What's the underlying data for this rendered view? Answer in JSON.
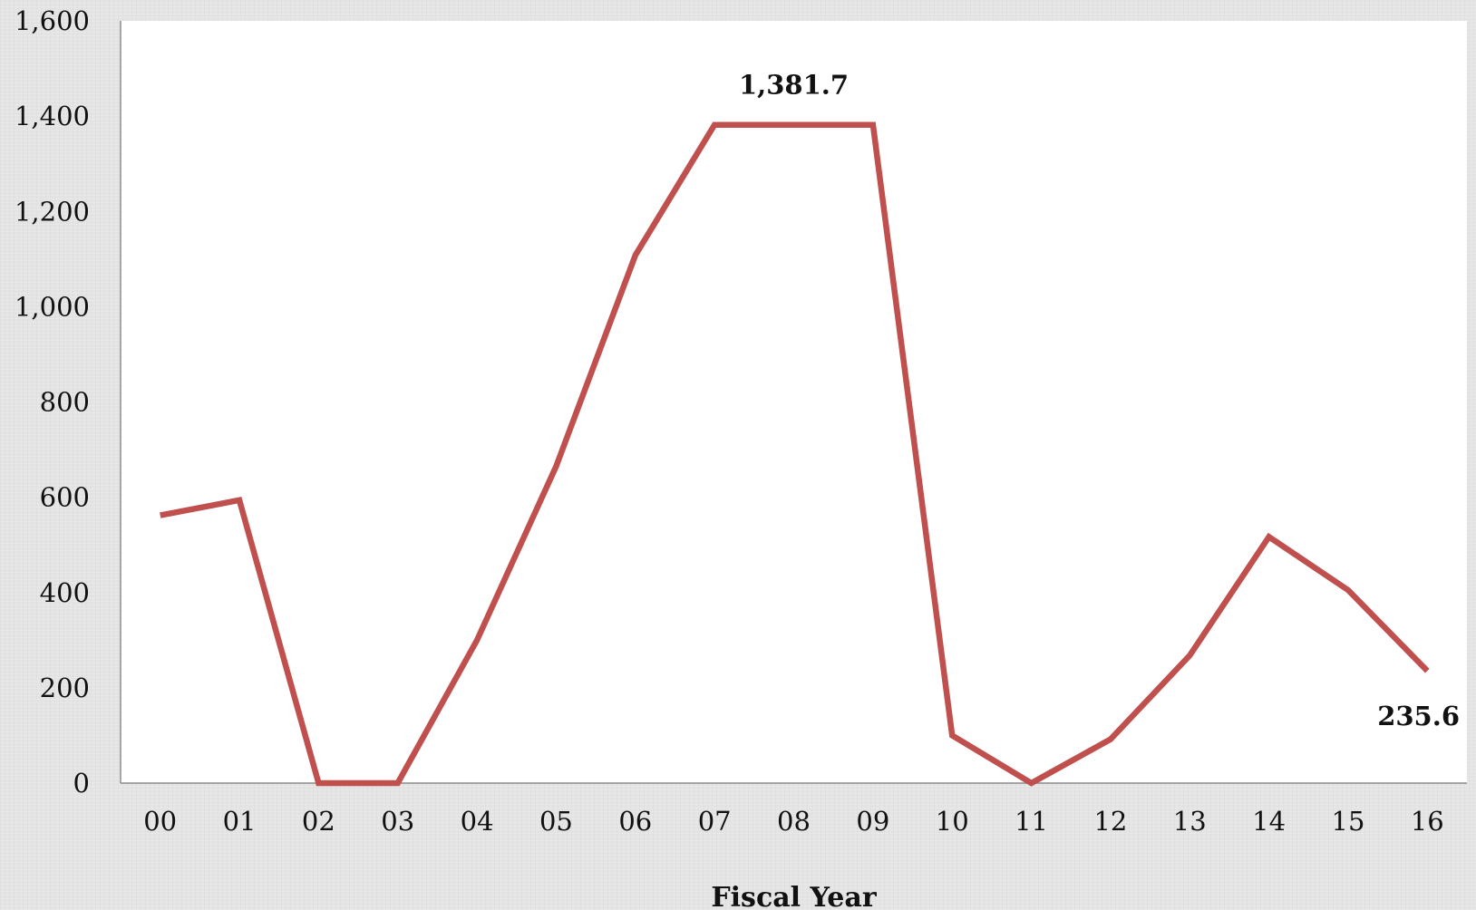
{
  "chart_data": {
    "type": "line",
    "title": "",
    "xlabel": "Fiscal Year",
    "ylabel": "",
    "x": [
      "00",
      "01",
      "02",
      "03",
      "04",
      "05",
      "06",
      "07",
      "08",
      "09",
      "10",
      "11",
      "12",
      "13",
      "14",
      "15",
      "16"
    ],
    "series": [
      {
        "name": "",
        "color": "#c0504d",
        "values": [
          562,
          594,
          0,
          0,
          300,
          665,
          1108,
          1381.7,
          1381.7,
          1381.7,
          100,
          0,
          92,
          268,
          517,
          405,
          235.6
        ]
      }
    ],
    "ylim": [
      0,
      1600
    ],
    "yticks": [
      0,
      200,
      400,
      600,
      800,
      1000,
      1200,
      1400,
      1600
    ],
    "ytick_labels": [
      "0",
      "200",
      "400",
      "600",
      "800",
      "1,000",
      "1,200",
      "1,400",
      "1,600"
    ],
    "annotations": [
      {
        "text": "1,381.7",
        "x": "08",
        "y": 1381.7
      },
      {
        "text": "235.6",
        "x": "16",
        "y": 235.6
      }
    ],
    "grid": false,
    "legend": "none",
    "plot_background": "#ffffff"
  }
}
